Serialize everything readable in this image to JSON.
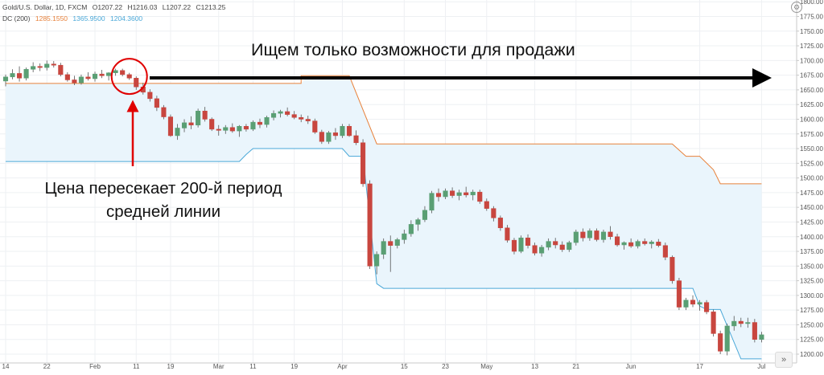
{
  "header": {
    "symbol": "Gold/U.S. Dollar, 1D, FXCM",
    "open": "O1207.22",
    "high": "H1216.03",
    "low": "L1207.22",
    "close": "C1213.25",
    "indicator": "DC (200)",
    "dc_upper": "1285.1550",
    "dc_lower": "1204.3600",
    "dc_basis": "1365.9500"
  },
  "annotations": {
    "top": "Ищем только возможности для продажи",
    "bottom": "Цена пересекает 200-й период средней линии"
  },
  "colors": {
    "up": "#5a9f74",
    "down": "#c8463f",
    "upper_band": "#e8813a",
    "lower_band": "#4aa8d8",
    "fill": "#eaf5fc",
    "arrow": "#000000",
    "marker": "#e00000"
  },
  "icons": {
    "scroll": "double-chevron-right-icon",
    "settings": "settings-icon"
  },
  "chart_data": {
    "type": "candlestick",
    "title": "Gold/U.S. Dollar, 1D, FXCM",
    "ylim": [
      1185,
      1803
    ],
    "y_ticks": [
      "1800.00",
      "1775.00",
      "1750.00",
      "1725.00",
      "1700.00",
      "1675.00",
      "1650.00",
      "1625.00",
      "1600.00",
      "1575.00",
      "1550.00",
      "1525.00",
      "1500.00",
      "1475.00",
      "1450.00",
      "1425.00",
      "1400.00",
      "1375.00",
      "1350.00",
      "1325.00",
      "1300.00",
      "1275.00",
      "1250.00",
      "1225.00",
      "1200.00"
    ],
    "x_ticks": [
      {
        "label": "14",
        "i": 0
      },
      {
        "label": "22",
        "i": 6
      },
      {
        "label": "Feb",
        "i": 13
      },
      {
        "label": "11",
        "i": 19
      },
      {
        "label": "19",
        "i": 24
      },
      {
        "label": "Mar",
        "i": 31
      },
      {
        "label": "11",
        "i": 36
      },
      {
        "label": "19",
        "i": 42
      },
      {
        "label": "Apr",
        "i": 49
      },
      {
        "label": "15",
        "i": 58
      },
      {
        "label": "23",
        "i": 64
      },
      {
        "label": "May",
        "i": 70
      },
      {
        "label": "13",
        "i": 77
      },
      {
        "label": "21",
        "i": 83
      },
      {
        "label": "Jun",
        "i": 91
      },
      {
        "label": "17",
        "i": 101
      },
      {
        "label": "Jul",
        "i": 110
      }
    ],
    "ohlc": [
      [
        1665,
        1676,
        1656,
        1672
      ],
      [
        1672,
        1685,
        1668,
        1678
      ],
      [
        1678,
        1690,
        1664,
        1670
      ],
      [
        1670,
        1688,
        1666,
        1685
      ],
      [
        1685,
        1697,
        1680,
        1690
      ],
      [
        1690,
        1695,
        1682,
        1688
      ],
      [
        1688,
        1700,
        1683,
        1694
      ],
      [
        1694,
        1699,
        1688,
        1692
      ],
      [
        1692,
        1696,
        1673,
        1676
      ],
      [
        1676,
        1680,
        1664,
        1667
      ],
      [
        1667,
        1674,
        1658,
        1662
      ],
      [
        1662,
        1676,
        1659,
        1672
      ],
      [
        1672,
        1680,
        1666,
        1669
      ],
      [
        1669,
        1681,
        1664,
        1677
      ],
      [
        1677,
        1684,
        1670,
        1674
      ],
      [
        1674,
        1680,
        1666,
        1679
      ],
      [
        1679,
        1686,
        1674,
        1683
      ],
      [
        1683,
        1686,
        1673,
        1676
      ],
      [
        1676,
        1679,
        1667,
        1670
      ],
      [
        1670,
        1673,
        1650,
        1655
      ],
      [
        1655,
        1662,
        1642,
        1646
      ],
      [
        1646,
        1651,
        1630,
        1635
      ],
      [
        1635,
        1640,
        1614,
        1620
      ],
      [
        1620,
        1624,
        1600,
        1604
      ],
      [
        1604,
        1608,
        1570,
        1572
      ],
      [
        1572,
        1592,
        1565,
        1585
      ],
      [
        1585,
        1600,
        1578,
        1594
      ],
      [
        1594,
        1605,
        1583,
        1590
      ],
      [
        1590,
        1618,
        1586,
        1614
      ],
      [
        1614,
        1621,
        1596,
        1600
      ],
      [
        1600,
        1603,
        1580,
        1583
      ],
      [
        1583,
        1590,
        1572,
        1581
      ],
      [
        1581,
        1590,
        1575,
        1586
      ],
      [
        1586,
        1593,
        1577,
        1580
      ],
      [
        1580,
        1590,
        1570,
        1588
      ],
      [
        1588,
        1592,
        1579,
        1583
      ],
      [
        1583,
        1598,
        1580,
        1595
      ],
      [
        1595,
        1601,
        1585,
        1591
      ],
      [
        1591,
        1606,
        1586,
        1603
      ],
      [
        1603,
        1615,
        1598,
        1610
      ],
      [
        1610,
        1616,
        1603,
        1613
      ],
      [
        1613,
        1620,
        1605,
        1608
      ],
      [
        1608,
        1614,
        1600,
        1603
      ],
      [
        1603,
        1608,
        1595,
        1600
      ],
      [
        1600,
        1606,
        1592,
        1597
      ],
      [
        1597,
        1601,
        1575,
        1578
      ],
      [
        1578,
        1582,
        1558,
        1562
      ],
      [
        1562,
        1580,
        1558,
        1577
      ],
      [
        1577,
        1585,
        1565,
        1572
      ],
      [
        1572,
        1592,
        1568,
        1588
      ],
      [
        1588,
        1592,
        1570,
        1572
      ],
      [
        1572,
        1581,
        1556,
        1560
      ],
      [
        1560,
        1566,
        1485,
        1490
      ],
      [
        1490,
        1496,
        1345,
        1350
      ],
      [
        1350,
        1375,
        1336,
        1370
      ],
      [
        1370,
        1397,
        1362,
        1392
      ],
      [
        1392,
        1402,
        1340,
        1385
      ],
      [
        1385,
        1398,
        1380,
        1395
      ],
      [
        1395,
        1412,
        1388,
        1405
      ],
      [
        1405,
        1428,
        1400,
        1421
      ],
      [
        1421,
        1432,
        1410,
        1429
      ],
      [
        1429,
        1452,
        1425,
        1445
      ],
      [
        1445,
        1478,
        1440,
        1474
      ],
      [
        1474,
        1482,
        1460,
        1468
      ],
      [
        1468,
        1482,
        1464,
        1478
      ],
      [
        1478,
        1484,
        1466,
        1470
      ],
      [
        1470,
        1480,
        1462,
        1475
      ],
      [
        1475,
        1485,
        1467,
        1471
      ],
      [
        1471,
        1480,
        1462,
        1476
      ],
      [
        1476,
        1480,
        1456,
        1460
      ],
      [
        1460,
        1465,
        1444,
        1448
      ],
      [
        1448,
        1452,
        1426,
        1432
      ],
      [
        1432,
        1436,
        1410,
        1415
      ],
      [
        1415,
        1420,
        1390,
        1394
      ],
      [
        1394,
        1398,
        1370,
        1375
      ],
      [
        1375,
        1402,
        1372,
        1398
      ],
      [
        1398,
        1404,
        1380,
        1385
      ],
      [
        1385,
        1390,
        1368,
        1372
      ],
      [
        1372,
        1386,
        1366,
        1382
      ],
      [
        1382,
        1397,
        1377,
        1392
      ],
      [
        1392,
        1398,
        1380,
        1386
      ],
      [
        1386,
        1392,
        1374,
        1378
      ],
      [
        1378,
        1393,
        1374,
        1390
      ],
      [
        1390,
        1412,
        1385,
        1408
      ],
      [
        1408,
        1414,
        1392,
        1398
      ],
      [
        1398,
        1414,
        1393,
        1410
      ],
      [
        1410,
        1414,
        1392,
        1395
      ],
      [
        1395,
        1412,
        1390,
        1408
      ],
      [
        1408,
        1418,
        1395,
        1400
      ],
      [
        1400,
        1405,
        1383,
        1386
      ],
      [
        1386,
        1392,
        1378,
        1390
      ],
      [
        1390,
        1397,
        1381,
        1384
      ],
      [
        1384,
        1395,
        1380,
        1392
      ],
      [
        1392,
        1397,
        1385,
        1388
      ],
      [
        1388,
        1394,
        1380,
        1391
      ],
      [
        1391,
        1396,
        1382,
        1385
      ],
      [
        1385,
        1390,
        1360,
        1365
      ],
      [
        1365,
        1368,
        1320,
        1325
      ],
      [
        1325,
        1330,
        1275,
        1280
      ],
      [
        1280,
        1296,
        1275,
        1292
      ],
      [
        1292,
        1300,
        1280,
        1285
      ],
      [
        1285,
        1292,
        1274,
        1288
      ],
      [
        1288,
        1292,
        1268,
        1272
      ],
      [
        1272,
        1276,
        1230,
        1235
      ],
      [
        1235,
        1240,
        1200,
        1205
      ],
      [
        1205,
        1252,
        1198,
        1248
      ],
      [
        1248,
        1265,
        1240,
        1256
      ],
      [
        1256,
        1262,
        1246,
        1252
      ],
      [
        1252,
        1262,
        1245,
        1254
      ],
      [
        1254,
        1260,
        1220,
        1225
      ],
      [
        1225,
        1238,
        1220,
        1233
      ]
    ],
    "upper_band": [
      [
        0,
        1661
      ],
      [
        43,
        1661
      ],
      [
        43,
        1674
      ],
      [
        49,
        1674
      ],
      [
        50,
        1674
      ],
      [
        54,
        1558
      ],
      [
        97,
        1558
      ],
      [
        99,
        1537
      ],
      [
        101,
        1537
      ],
      [
        103,
        1514
      ],
      [
        104,
        1490
      ],
      [
        110,
        1490
      ]
    ],
    "lower_band": [
      [
        0,
        1528
      ],
      [
        34,
        1528
      ],
      [
        35,
        1540
      ],
      [
        36,
        1550
      ],
      [
        49,
        1550
      ],
      [
        50,
        1537
      ],
      [
        52,
        1537
      ],
      [
        54,
        1320
      ],
      [
        55,
        1312
      ],
      [
        100,
        1312
      ],
      [
        101,
        1282
      ],
      [
        102,
        1276
      ],
      [
        104,
        1276
      ],
      [
        107,
        1192
      ],
      [
        110,
        1192
      ]
    ]
  }
}
